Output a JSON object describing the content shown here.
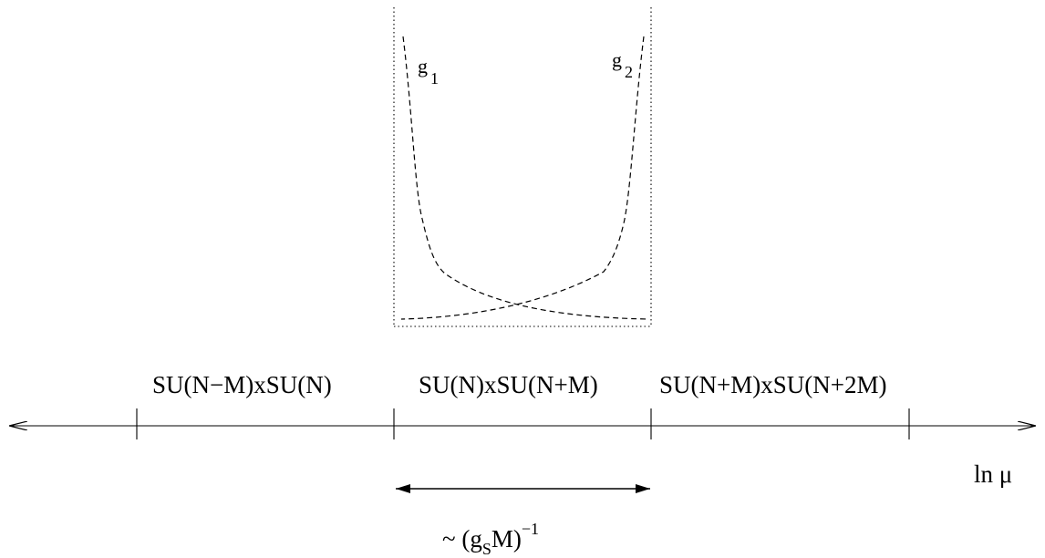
{
  "curves": {
    "g1": {
      "base": "g",
      "sub": "1"
    },
    "g2": {
      "base": "g",
      "sub": "2"
    }
  },
  "regions": [
    "SU(N−M)xSU(N)",
    "SU(N)xSU(N+M)",
    "SU(N+M)xSU(N+2M)"
  ],
  "axis": {
    "label": "ln μ"
  },
  "interval": {
    "prefix": "~ (g",
    "sub": "S",
    "mid": "M)",
    "sup": "−1"
  },
  "colors": {
    "ink": "#000000",
    "background": "#ffffff"
  }
}
